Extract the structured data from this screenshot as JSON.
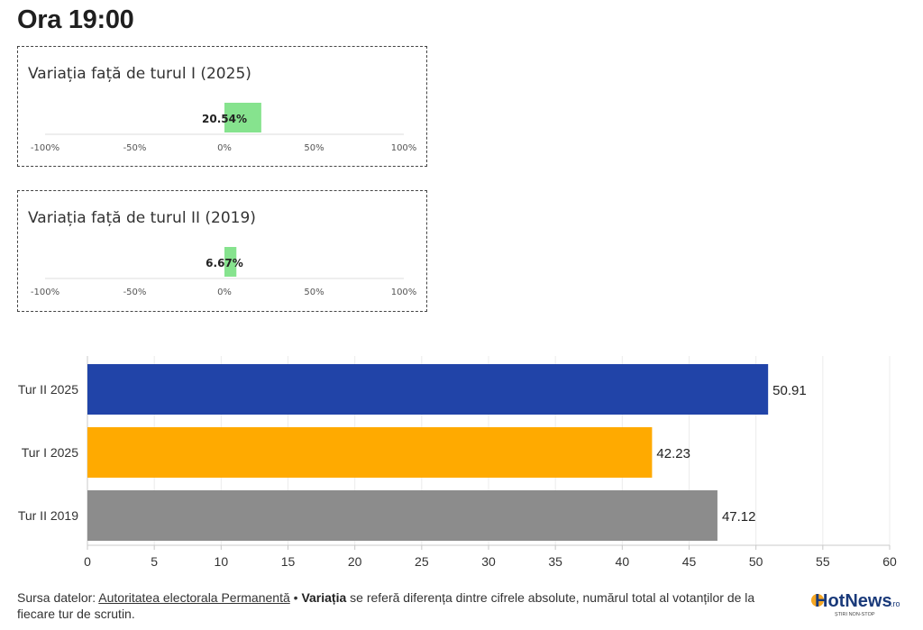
{
  "title": "Ora 19:00",
  "variation_panels": [
    {
      "title": "Variația față de turul I (2025)",
      "value": 20.54,
      "value_label": "20.54%",
      "ticks": [
        "-100%",
        "-50%",
        "0%",
        "50%",
        "100%"
      ],
      "color": "#86e38e"
    },
    {
      "title": "Variația față de turul II (2019)",
      "value": 6.67,
      "value_label": "6.67%",
      "ticks": [
        "-100%",
        "-50%",
        "0%",
        "50%",
        "100%"
      ],
      "color": "#86e38e"
    }
  ],
  "chart_data": [
    {
      "type": "bar",
      "title": "Variația față de turul I (2025)",
      "categories": [
        ""
      ],
      "values": [
        20.54
      ],
      "xlim": [
        -100,
        100
      ],
      "tick_labels": [
        "-100%",
        "-50%",
        "0%",
        "50%",
        "100%"
      ]
    },
    {
      "type": "bar",
      "title": "Variația față de turul II (2019)",
      "categories": [
        ""
      ],
      "values": [
        6.67
      ],
      "xlim": [
        -100,
        100
      ],
      "tick_labels": [
        "-100%",
        "-50%",
        "0%",
        "50%",
        "100%"
      ]
    },
    {
      "type": "bar",
      "orientation": "horizontal",
      "categories": [
        "Tur II 2025",
        "Tur I 2025",
        "Tur II 2019"
      ],
      "values": [
        50.91,
        42.23,
        47.12
      ],
      "value_labels": [
        "50.91",
        "42.23",
        "47.12"
      ],
      "colors": [
        "#2144a8",
        "#ffaa00",
        "#8c8c8c"
      ],
      "xlim": [
        0,
        60
      ],
      "xticks": [
        "0",
        "5",
        "10",
        "15",
        "20",
        "25",
        "30",
        "35",
        "40",
        "45",
        "50",
        "55",
        "60"
      ],
      "grid": true
    }
  ],
  "footer": {
    "source_prefix": "Sursa datelor: ",
    "source_link": "Autoritatea electorala Permanentă",
    "separator": " • ",
    "bold_term": "Variația",
    "explanation": " se referă diferența dintre cifrele absolute, numărul total al votanților de la fiecare tur de scrutin."
  },
  "logo": {
    "text": "HotNews",
    "suffix": ".ro",
    "tagline": "ȘTIRI NON-STOP"
  }
}
